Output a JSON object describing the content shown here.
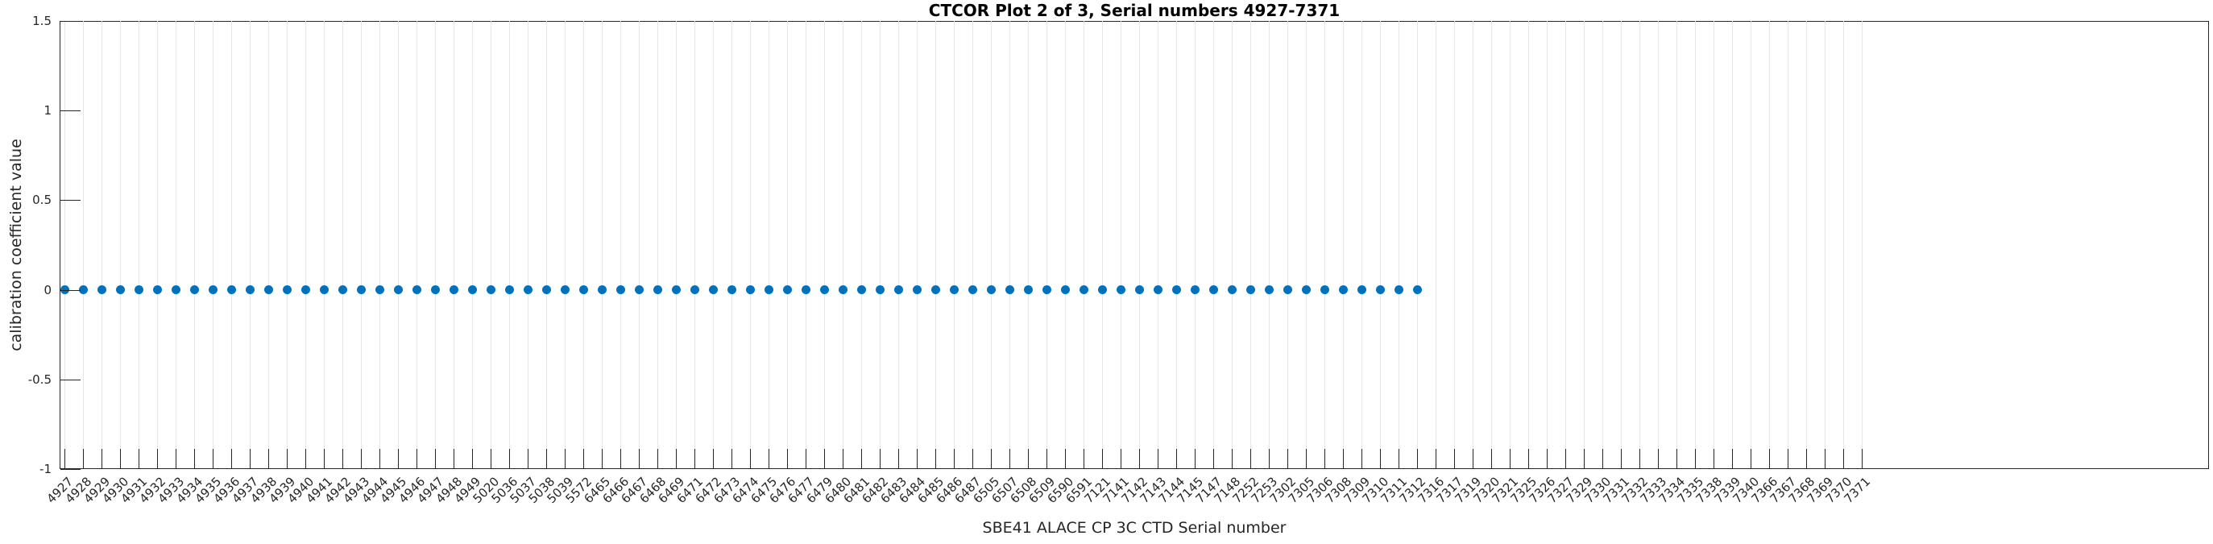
{
  "figure": {
    "title": "CTCOR Plot 2 of 3, Serial numbers 4927-7371"
  },
  "colors": {
    "marker": "#0072BD",
    "grid": "#e6e6e6",
    "axis": "#262626",
    "text": "#262626",
    "title": "#000000",
    "background": "#ffffff"
  },
  "chart_data": {
    "type": "scatter",
    "title": "CTCOR Plot 2 of 3, Serial numbers 4927-7371",
    "xlabel": "SBE41 ALACE CP 3C CTD Serial number",
    "ylabel": "calibration coefficient value",
    "ylim": [
      -1,
      1.5
    ],
    "yticks": [
      {
        "v": 1.5,
        "label": "1.5"
      },
      {
        "v": 1,
        "label": "1"
      },
      {
        "v": 0.5,
        "label": "0.5"
      },
      {
        "v": 0,
        "label": "0"
      },
      {
        "v": -0.5,
        "label": "-0.5"
      },
      {
        "v": -1,
        "label": "-1"
      }
    ],
    "grid": "vertical-at-each-x-tick",
    "legend": null,
    "marker": {
      "shape": "filled-circle",
      "color": "#0072BD"
    },
    "categories": [
      "4927",
      "4928",
      "4929",
      "4930",
      "4931",
      "4932",
      "4933",
      "4934",
      "4935",
      "4936",
      "4937",
      "4938",
      "4939",
      "4940",
      "4941",
      "4942",
      "4943",
      "4944",
      "4945",
      "4946",
      "4947",
      "4948",
      "4949",
      "5020",
      "5036",
      "5037",
      "5038",
      "5039",
      "5572",
      "6465",
      "6466",
      "6467",
      "6468",
      "6469",
      "6471",
      "6472",
      "6473",
      "6474",
      "6475",
      "6476",
      "6477",
      "6479",
      "6480",
      "6481",
      "6482",
      "6483",
      "6484",
      "6485",
      "6486",
      "6487",
      "6505",
      "6507",
      "6508",
      "6509",
      "6590",
      "6591",
      "7121",
      "7141",
      "7142",
      "7143",
      "7144",
      "7145",
      "7147",
      "7148",
      "7252",
      "7253",
      "7302",
      "7305",
      "7306",
      "7308",
      "7309",
      "7310",
      "7311",
      "7312",
      "7316",
      "7317",
      "7319",
      "7320",
      "7321",
      "7325",
      "7326",
      "7327",
      "7329",
      "7330",
      "7331",
      "7332",
      "7333",
      "7334",
      "7335",
      "7338",
      "7339",
      "7340",
      "7366",
      "7367",
      "7368",
      "7369",
      "7370",
      "7371"
    ],
    "values": [
      0,
      0,
      0,
      0,
      0,
      0,
      0,
      0,
      0,
      0,
      0,
      0,
      0,
      0,
      0,
      0,
      0,
      0,
      0,
      0,
      0,
      0,
      0,
      0,
      0,
      0,
      0,
      0,
      0,
      0,
      0,
      0,
      0,
      0,
      0,
      0,
      0,
      0,
      0,
      0,
      0,
      0,
      0,
      0,
      0,
      0,
      0,
      0,
      0,
      0,
      0,
      0,
      0,
      0,
      0,
      0,
      0,
      0,
      0,
      0,
      0,
      0,
      0,
      0,
      0,
      0,
      0,
      0,
      0,
      0,
      0,
      0,
      0,
      0,
      null,
      null,
      null,
      null,
      null,
      null,
      null,
      null,
      null,
      null,
      null,
      null,
      null,
      null,
      null,
      null,
      null,
      null,
      null,
      null,
      null,
      null,
      null,
      null
    ]
  }
}
